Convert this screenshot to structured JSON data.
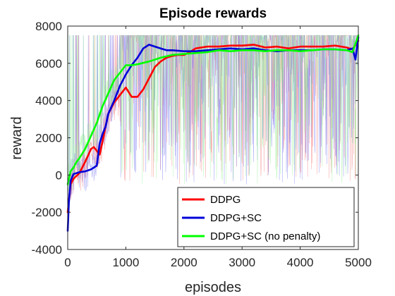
{
  "chart_data": {
    "type": "line",
    "title": "Episode rewards",
    "xlabel": "episodes",
    "ylabel": "reward",
    "xlim": [
      0,
      5000
    ],
    "ylim": [
      -4000,
      8000
    ],
    "xticks": [
      0,
      1000,
      2000,
      3000,
      4000,
      5000
    ],
    "yticks": [
      -4000,
      -2000,
      0,
      2000,
      4000,
      6000,
      8000
    ],
    "grid": false,
    "legend_position": "bottom-right",
    "series": [
      {
        "name": "DDPG",
        "color": "#ff0000",
        "raw_color": "#f26d6d",
        "x": [
          0,
          50,
          100,
          200,
          300,
          400,
          450,
          500,
          550,
          600,
          650,
          700,
          800,
          900,
          1000,
          1100,
          1200,
          1300,
          1400,
          1500,
          1600,
          1700,
          1800,
          1900,
          2000,
          2100,
          2200,
          2400,
          2600,
          2800,
          3000,
          3200,
          3400,
          3600,
          3800,
          4000,
          4200,
          4400,
          4600,
          4800,
          4900,
          5000
        ],
        "y": [
          -2000,
          -500,
          -200,
          100,
          700,
          1400,
          1500,
          1300,
          1100,
          1800,
          2600,
          3300,
          3900,
          4300,
          4700,
          4200,
          4200,
          4600,
          5200,
          5800,
          6100,
          6300,
          6400,
          6450,
          6450,
          6600,
          6800,
          6900,
          6900,
          6950,
          6950,
          7000,
          6850,
          6900,
          6800,
          6900,
          6900,
          6900,
          6950,
          6850,
          6750,
          7200
        ]
      },
      {
        "name": "DDPG+SC",
        "color": "#0000d8",
        "raw_color": "#6a6af0",
        "x": [
          0,
          20,
          50,
          100,
          200,
          300,
          400,
          500,
          550,
          600,
          650,
          700,
          800,
          900,
          1000,
          1100,
          1200,
          1300,
          1400,
          1500,
          1600,
          1700,
          1800,
          2000,
          2200,
          2400,
          2600,
          2800,
          3000,
          3200,
          3400,
          3600,
          3800,
          4000,
          4200,
          4400,
          4600,
          4800,
          4900,
          4950,
          5000
        ],
        "y": [
          -3000,
          -1500,
          -300,
          50,
          150,
          200,
          300,
          500,
          1700,
          2200,
          2600,
          3300,
          4000,
          4800,
          5400,
          5900,
          6300,
          6800,
          7000,
          6900,
          6800,
          6700,
          6700,
          6650,
          6650,
          6700,
          6750,
          6800,
          6750,
          6800,
          6700,
          6650,
          6700,
          6700,
          6700,
          6750,
          6750,
          6700,
          6800,
          6200,
          7400
        ]
      },
      {
        "name": "DDPG+SC (no penalty)",
        "color": "#00ff00",
        "raw_color": "#88f088",
        "x": [
          0,
          50,
          100,
          150,
          200,
          300,
          400,
          500,
          600,
          700,
          800,
          900,
          1000,
          1100,
          1200,
          1400,
          1600,
          1800,
          2000,
          2200,
          2400,
          2600,
          2800,
          3000,
          3200,
          3400,
          3600,
          3800,
          4000,
          4200,
          4400,
          4600,
          4800,
          4900,
          5000
        ],
        "y": [
          -500,
          200,
          400,
          700,
          900,
          1400,
          2100,
          2800,
          3700,
          4400,
          5100,
          5500,
          5900,
          5900,
          5950,
          6100,
          6300,
          6450,
          6500,
          6550,
          6600,
          6700,
          6650,
          6700,
          6700,
          6650,
          6700,
          6700,
          6650,
          6700,
          6750,
          6750,
          6700,
          6600,
          7500
        ]
      }
    ]
  }
}
